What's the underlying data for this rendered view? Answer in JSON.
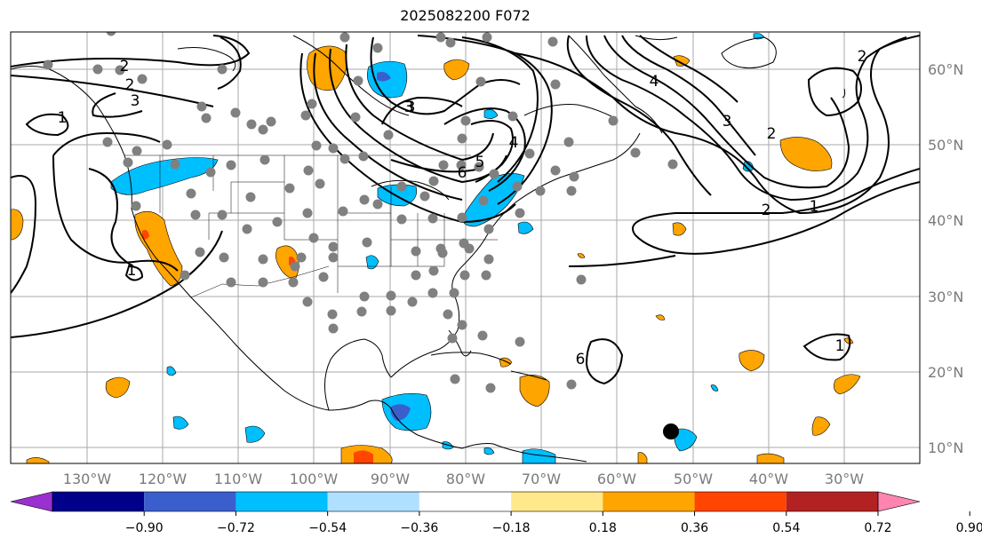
{
  "title": "2025082200 F072",
  "longitude_labels": [
    "130°W",
    "120°W",
    "110°W",
    "100°W",
    "90°W",
    "80°W",
    "70°W",
    "60°W",
    "50°W",
    "40°W",
    "30°W"
  ],
  "latitude_labels": [
    "60°N",
    "50°N",
    "40°N",
    "30°N",
    "20°N",
    "10°N"
  ],
  "contour_labels": [
    "2",
    "3",
    "2",
    "1",
    "3",
    "3",
    "4",
    "5",
    "6",
    "4",
    "3",
    "2",
    "1",
    "2",
    "6",
    "1",
    "1",
    "2"
  ],
  "colorbar": {
    "ticks": [
      "−0.90",
      "−0.72",
      "−0.54",
      "−0.36",
      "−0.18",
      "0.18",
      "0.36",
      "0.54",
      "0.72",
      "0.90"
    ],
    "colors": [
      "#9b30d0",
      "#00008b",
      "#3a5fcd",
      "#00bfff",
      "#b0e0ff",
      "#ffffff",
      "#ffe98a",
      "#ffa500",
      "#ff4500",
      "#b22222",
      "#ff85b0"
    ]
  },
  "colors": {
    "positive": "#ffa500",
    "negative": "#00bfff",
    "station": "#808080",
    "marker": "#000000"
  }
}
